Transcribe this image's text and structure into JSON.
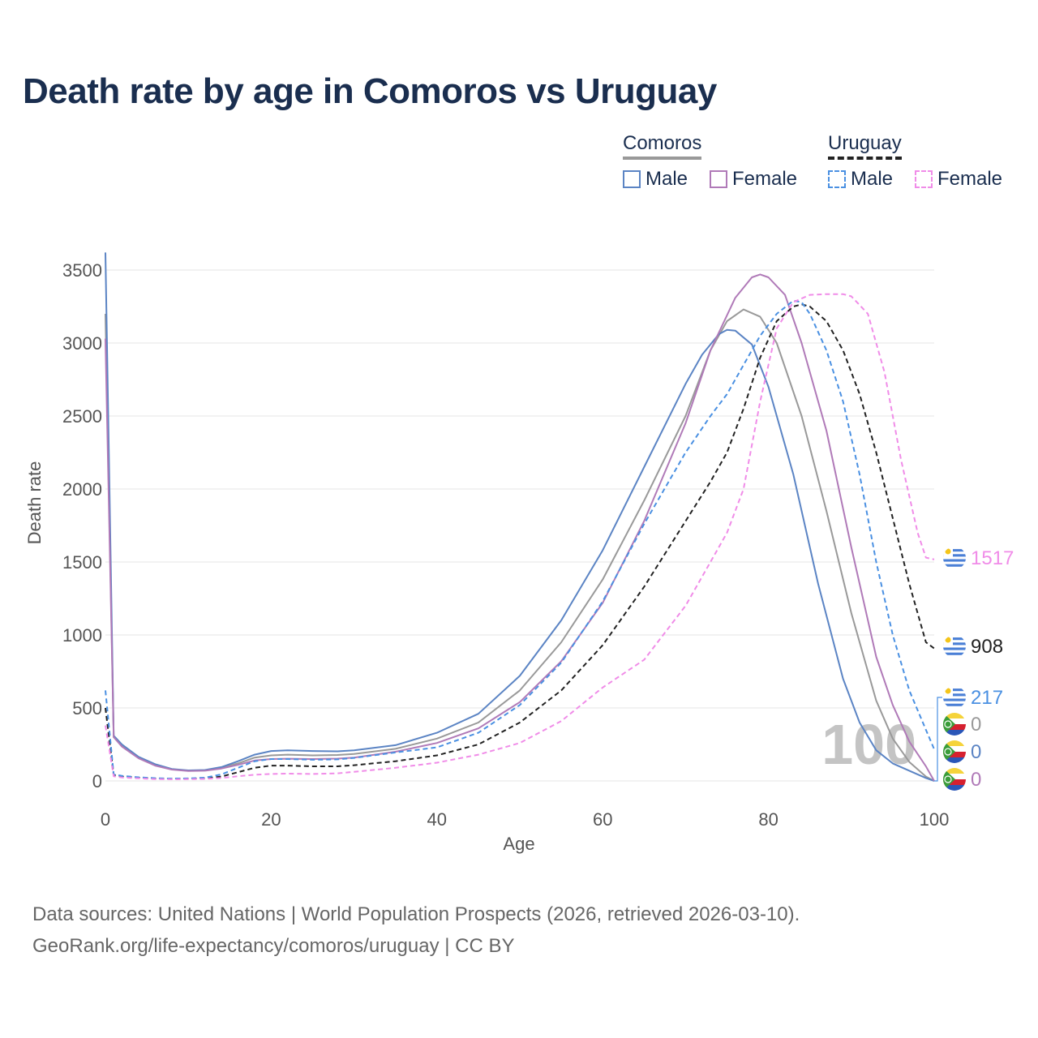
{
  "title": "Death rate by age in Comoros vs Uruguay",
  "legend": {
    "groups": [
      {
        "name": "Comoros",
        "line_color": "#999999",
        "style": "solid",
        "items": [
          {
            "label": "Male",
            "color": "#5b84c4",
            "style": "solid"
          },
          {
            "label": "Female",
            "color": "#b07ab8",
            "style": "solid"
          }
        ]
      },
      {
        "name": "Uruguay",
        "line_color": "#222222",
        "style": "dashed",
        "items": [
          {
            "label": "Male",
            "color": "#4a90e2",
            "style": "dashed"
          },
          {
            "label": "Female",
            "color": "#f08ce8",
            "style": "dashed"
          }
        ]
      }
    ]
  },
  "source_lines": [
    "Data sources: United Nations | World Population Prospects (2026, retrieved 2026-03-10).",
    "GeoRank.org/life-expectancy/comoros/uruguay | CC BY"
  ],
  "watermark": "100",
  "chart_data": {
    "type": "line",
    "title": "Death rate by age in Comoros vs Uruguay",
    "xlabel": "Age",
    "ylabel": "Death rate",
    "xlim": [
      0,
      100
    ],
    "ylim": [
      0,
      3500
    ],
    "xticks": [
      0,
      20,
      40,
      60,
      80,
      100
    ],
    "yticks": [
      0,
      500,
      1000,
      1500,
      2000,
      2500,
      3000,
      3500
    ],
    "grid": true,
    "series": [
      {
        "name": "Comoros Total",
        "color": "#999999",
        "dash": false,
        "end_label": "0",
        "flag": "comoros",
        "points": [
          [
            0,
            3200
          ],
          [
            1,
            300
          ],
          [
            2,
            240
          ],
          [
            4,
            160
          ],
          [
            6,
            110
          ],
          [
            8,
            80
          ],
          [
            10,
            70
          ],
          [
            12,
            72
          ],
          [
            14,
            90
          ],
          [
            16,
            120
          ],
          [
            18,
            160
          ],
          [
            20,
            175
          ],
          [
            22,
            180
          ],
          [
            25,
            175
          ],
          [
            28,
            178
          ],
          [
            30,
            185
          ],
          [
            35,
            220
          ],
          [
            40,
            290
          ],
          [
            45,
            400
          ],
          [
            50,
            620
          ],
          [
            55,
            950
          ],
          [
            60,
            1380
          ],
          [
            65,
            1920
          ],
          [
            70,
            2500
          ],
          [
            73,
            2950
          ],
          [
            75,
            3150
          ],
          [
            77,
            3230
          ],
          [
            79,
            3180
          ],
          [
            81,
            3000
          ],
          [
            84,
            2500
          ],
          [
            87,
            1850
          ],
          [
            90,
            1150
          ],
          [
            93,
            550
          ],
          [
            95,
            290
          ],
          [
            97,
            130
          ],
          [
            99,
            30
          ],
          [
            100,
            0
          ]
        ]
      },
      {
        "name": "Comoros Male",
        "color": "#5b84c4",
        "dash": false,
        "end_label": "0",
        "flag": "comoros",
        "points": [
          [
            0,
            3620
          ],
          [
            1,
            310
          ],
          [
            2,
            250
          ],
          [
            4,
            165
          ],
          [
            6,
            115
          ],
          [
            8,
            82
          ],
          [
            10,
            72
          ],
          [
            12,
            75
          ],
          [
            14,
            95
          ],
          [
            16,
            135
          ],
          [
            18,
            180
          ],
          [
            20,
            205
          ],
          [
            22,
            210
          ],
          [
            25,
            205
          ],
          [
            28,
            203
          ],
          [
            30,
            210
          ],
          [
            35,
            245
          ],
          [
            40,
            330
          ],
          [
            45,
            460
          ],
          [
            50,
            720
          ],
          [
            55,
            1100
          ],
          [
            60,
            1580
          ],
          [
            65,
            2150
          ],
          [
            70,
            2720
          ],
          [
            72,
            2920
          ],
          [
            74,
            3060
          ],
          [
            75,
            3090
          ],
          [
            76,
            3085
          ],
          [
            78,
            2990
          ],
          [
            80,
            2700
          ],
          [
            83,
            2100
          ],
          [
            86,
            1350
          ],
          [
            89,
            700
          ],
          [
            91,
            400
          ],
          [
            93,
            210
          ],
          [
            95,
            120
          ],
          [
            97,
            70
          ],
          [
            99,
            20
          ],
          [
            100,
            0
          ]
        ]
      },
      {
        "name": "Comoros Female",
        "color": "#b07ab8",
        "dash": false,
        "end_label": "0",
        "flag": "comoros",
        "points": [
          [
            0,
            3030
          ],
          [
            1,
            300
          ],
          [
            2,
            235
          ],
          [
            4,
            155
          ],
          [
            6,
            105
          ],
          [
            8,
            78
          ],
          [
            10,
            68
          ],
          [
            12,
            70
          ],
          [
            14,
            85
          ],
          [
            16,
            110
          ],
          [
            18,
            140
          ],
          [
            20,
            150
          ],
          [
            22,
            152
          ],
          [
            25,
            150
          ],
          [
            28,
            153
          ],
          [
            30,
            160
          ],
          [
            35,
            200
          ],
          [
            40,
            260
          ],
          [
            45,
            360
          ],
          [
            50,
            540
          ],
          [
            55,
            820
          ],
          [
            60,
            1220
          ],
          [
            65,
            1780
          ],
          [
            70,
            2450
          ],
          [
            73,
            2950
          ],
          [
            76,
            3310
          ],
          [
            78,
            3450
          ],
          [
            79,
            3470
          ],
          [
            80,
            3450
          ],
          [
            82,
            3330
          ],
          [
            84,
            3000
          ],
          [
            87,
            2400
          ],
          [
            90,
            1600
          ],
          [
            93,
            850
          ],
          [
            95,
            520
          ],
          [
            97,
            270
          ],
          [
            99,
            100
          ],
          [
            100,
            0
          ]
        ]
      },
      {
        "name": "Uruguay Total",
        "color": "#222222",
        "dash": true,
        "end_label": "908",
        "flag": "uruguay",
        "points": [
          [
            0,
            500
          ],
          [
            1,
            40
          ],
          [
            2,
            30
          ],
          [
            4,
            22
          ],
          [
            6,
            16
          ],
          [
            8,
            14
          ],
          [
            10,
            15
          ],
          [
            12,
            18
          ],
          [
            14,
            30
          ],
          [
            16,
            60
          ],
          [
            18,
            90
          ],
          [
            20,
            105
          ],
          [
            22,
            105
          ],
          [
            25,
            100
          ],
          [
            28,
            100
          ],
          [
            30,
            108
          ],
          [
            35,
            135
          ],
          [
            40,
            175
          ],
          [
            45,
            250
          ],
          [
            50,
            400
          ],
          [
            55,
            620
          ],
          [
            60,
            930
          ],
          [
            65,
            1330
          ],
          [
            70,
            1780
          ],
          [
            73,
            2050
          ],
          [
            75,
            2250
          ],
          [
            77,
            2550
          ],
          [
            79,
            2900
          ],
          [
            81,
            3150
          ],
          [
            83,
            3250
          ],
          [
            84,
            3265
          ],
          [
            85,
            3250
          ],
          [
            87,
            3150
          ],
          [
            89,
            2950
          ],
          [
            91,
            2650
          ],
          [
            93,
            2250
          ],
          [
            95,
            1800
          ],
          [
            97,
            1350
          ],
          [
            99,
            950
          ],
          [
            100,
            908
          ]
        ]
      },
      {
        "name": "Uruguay Male",
        "color": "#4a90e2",
        "dash": true,
        "end_label": "217",
        "flag": "uruguay",
        "points": [
          [
            0,
            620
          ],
          [
            1,
            45
          ],
          [
            2,
            35
          ],
          [
            4,
            25
          ],
          [
            6,
            19
          ],
          [
            8,
            16
          ],
          [
            10,
            17
          ],
          [
            12,
            22
          ],
          [
            14,
            45
          ],
          [
            16,
            90
          ],
          [
            18,
            135
          ],
          [
            20,
            150
          ],
          [
            22,
            150
          ],
          [
            25,
            145
          ],
          [
            28,
            148
          ],
          [
            30,
            158
          ],
          [
            35,
            195
          ],
          [
            40,
            230
          ],
          [
            45,
            330
          ],
          [
            50,
            520
          ],
          [
            55,
            810
          ],
          [
            60,
            1230
          ],
          [
            65,
            1760
          ],
          [
            70,
            2250
          ],
          [
            73,
            2500
          ],
          [
            75,
            2650
          ],
          [
            77,
            2850
          ],
          [
            79,
            3050
          ],
          [
            81,
            3200
          ],
          [
            83,
            3290
          ],
          [
            84,
            3280
          ],
          [
            85,
            3200
          ],
          [
            87,
            2950
          ],
          [
            89,
            2600
          ],
          [
            91,
            2100
          ],
          [
            93,
            1500
          ],
          [
            95,
            1000
          ],
          [
            97,
            620
          ],
          [
            99,
            350
          ],
          [
            100,
            217
          ]
        ]
      },
      {
        "name": "Uruguay Female",
        "color": "#f08ce8",
        "dash": true,
        "end_label": "1517",
        "flag": "uruguay",
        "points": [
          [
            0,
            380
          ],
          [
            1,
            32
          ],
          [
            2,
            24
          ],
          [
            4,
            18
          ],
          [
            6,
            13
          ],
          [
            8,
            11
          ],
          [
            10,
            12
          ],
          [
            12,
            14
          ],
          [
            14,
            20
          ],
          [
            16,
            32
          ],
          [
            18,
            42
          ],
          [
            20,
            48
          ],
          [
            22,
            50
          ],
          [
            25,
            48
          ],
          [
            28,
            52
          ],
          [
            30,
            62
          ],
          [
            35,
            90
          ],
          [
            40,
            125
          ],
          [
            45,
            180
          ],
          [
            50,
            260
          ],
          [
            55,
            410
          ],
          [
            60,
            640
          ],
          [
            65,
            830
          ],
          [
            70,
            1200
          ],
          [
            73,
            1500
          ],
          [
            75,
            1700
          ],
          [
            77,
            2000
          ],
          [
            79,
            2600
          ],
          [
            81,
            3100
          ],
          [
            83,
            3280
          ],
          [
            85,
            3330
          ],
          [
            87,
            3335
          ],
          [
            89,
            3335
          ],
          [
            90,
            3320
          ],
          [
            92,
            3200
          ],
          [
            94,
            2800
          ],
          [
            96,
            2200
          ],
          [
            98,
            1700
          ],
          [
            99,
            1530
          ],
          [
            100,
            1517
          ]
        ]
      }
    ]
  }
}
